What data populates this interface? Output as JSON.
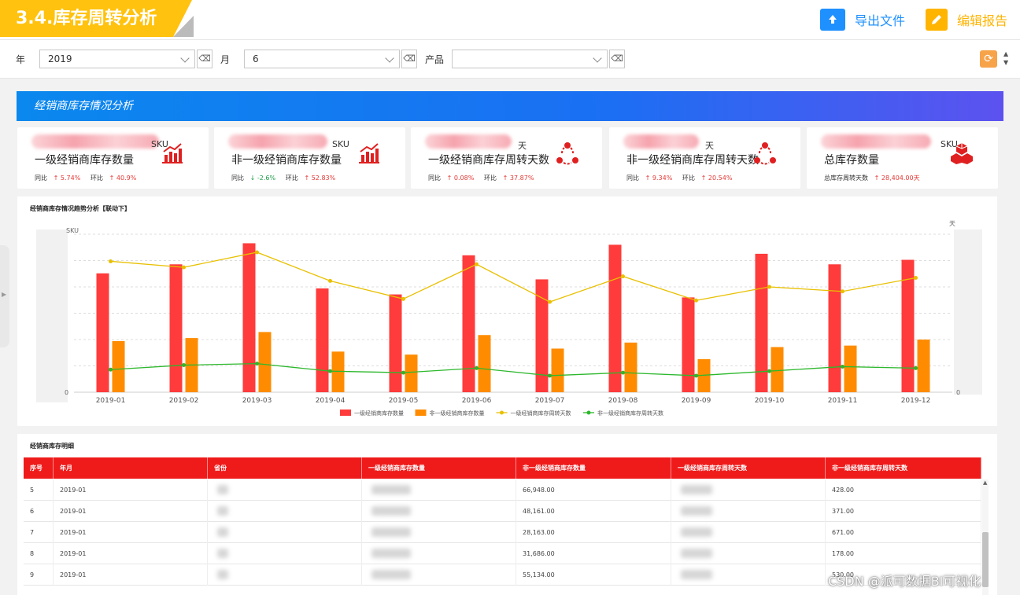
{
  "header": {
    "title": "3.4.库存周转分析",
    "export_label": "导出文件",
    "edit_label": "编辑报告"
  },
  "filters": {
    "year_label": "年",
    "year_value": "2019",
    "month_label": "月",
    "month_value": "6",
    "product_label": "产品",
    "product_value": ""
  },
  "banner": {
    "title": "经销商库存情况分析"
  },
  "kpis": [
    {
      "unit": "SKU",
      "name": "一级经销商库存数量",
      "c1_label": "同比",
      "c1_arrow": "↑",
      "c1_value": "5.74%",
      "c1_dir": "up",
      "c2_label": "环比",
      "c2_arrow": "↑",
      "c2_value": "40.9%",
      "c2_dir": "up",
      "icon": "bar-chart-icon"
    },
    {
      "unit": "SKU",
      "name": "非一级经销商库存数量",
      "c1_label": "同比",
      "c1_arrow": "↓",
      "c1_value": "-2.6%",
      "c1_dir": "down",
      "c2_label": "环比",
      "c2_arrow": "↑",
      "c2_value": "52.83%",
      "c2_dir": "up",
      "icon": "bar-chart-icon"
    },
    {
      "unit": "天",
      "name": "一级经销商库存周转天数",
      "c1_label": "同比",
      "c1_arrow": "↑",
      "c1_value": "0.08%",
      "c1_dir": "up",
      "c2_label": "环比",
      "c2_arrow": "↑",
      "c2_value": "37.87%",
      "c2_dir": "up",
      "icon": "cycle-icon"
    },
    {
      "unit": "天",
      "name": "非一级经销商库存周转天数",
      "c1_label": "同比",
      "c1_arrow": "↑",
      "c1_value": "9.34%",
      "c1_dir": "up",
      "c2_label": "环比",
      "c2_arrow": "↑",
      "c2_value": "20.54%",
      "c2_dir": "up",
      "icon": "cycle-icon"
    },
    {
      "unit": "SKU",
      "name": "总库存数量",
      "c1_label": "总库存周转天数",
      "c1_arrow": "↑",
      "c1_value": "28,404.00天",
      "c1_dir": "up",
      "c2_label": "",
      "c2_arrow": "",
      "c2_value": "",
      "c2_dir": "",
      "icon": "cubes-icon"
    }
  ],
  "chart_panel": {
    "title": "经销商库存情况趋势分析【联动下】",
    "y_left_unit": "SKU",
    "y_right_unit": "天",
    "y_zero": "0"
  },
  "chart_data": {
    "type": "bar",
    "categories": [
      "2019-01",
      "2019-02",
      "2019-03",
      "2019-04",
      "2019-05",
      "2019-06",
      "2019-07",
      "2019-08",
      "2019-09",
      "2019-10",
      "2019-11",
      "2019-12"
    ],
    "series": [
      {
        "name": "一级经销商库存数量",
        "kind": "bar",
        "axis": "left",
        "color": "#ff3b3b",
        "values": [
          79,
          85,
          99,
          69,
          65,
          91,
          75,
          98,
          63,
          92,
          85,
          88
        ]
      },
      {
        "name": "非一级经销商库存数量",
        "kind": "bar",
        "axis": "left",
        "color": "#ff8c00",
        "values": [
          34,
          36,
          40,
          27,
          25,
          38,
          29,
          33,
          22,
          30,
          31,
          35
        ]
      },
      {
        "name": "一级经销商库存周转天数",
        "kind": "line",
        "axis": "left",
        "color": "#e8c000",
        "values": [
          87,
          83,
          93,
          74,
          62,
          85,
          60,
          77,
          61,
          70,
          67,
          76
        ]
      },
      {
        "name": "非一级经销商库存周转天数",
        "kind": "line",
        "axis": "left",
        "color": "#2db82d",
        "values": [
          15,
          18,
          19,
          14,
          13,
          16,
          11,
          13,
          11,
          14,
          17,
          16
        ]
      }
    ],
    "ylim": [
      0,
      105
    ],
    "grid": true,
    "legend": "bottom-center"
  },
  "table": {
    "title": "经销商库存明细",
    "columns": [
      "序号",
      "年月",
      "省份",
      "一级经销商库存数量",
      "非一级经销商库存数量",
      "一级经销商库存周转天数",
      "非一级经销商库存周转天数"
    ],
    "rows": [
      {
        "idx": "5",
        "month": "2019-01",
        "nonfirst_qty": "66,948.00",
        "nonfirst_days": "428.00"
      },
      {
        "idx": "6",
        "month": "2019-01",
        "nonfirst_qty": "48,161.00",
        "nonfirst_days": "371.00"
      },
      {
        "idx": "7",
        "month": "2019-01",
        "nonfirst_qty": "28,163.00",
        "nonfirst_days": "671.00"
      },
      {
        "idx": "8",
        "month": "2019-01",
        "nonfirst_qty": "31,686.00",
        "nonfirst_days": "178.00"
      },
      {
        "idx": "9",
        "month": "2019-01",
        "nonfirst_qty": "55,134.00",
        "nonfirst_days": "530.00"
      }
    ]
  },
  "watermark": "CSDN @派可数据BI可视化"
}
